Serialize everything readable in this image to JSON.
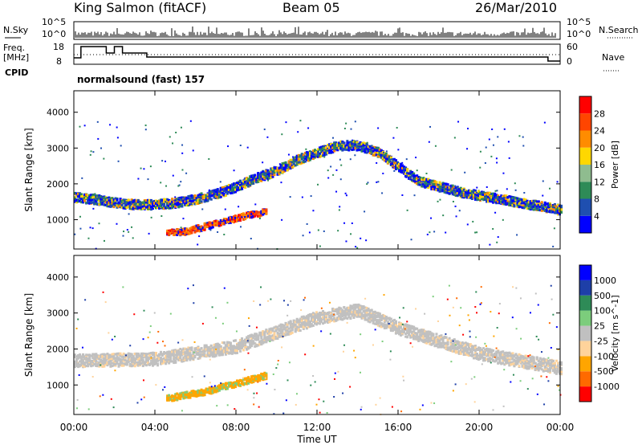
{
  "header": {
    "station": "King Salmon (fitACF)",
    "beam": "Beam 05",
    "date": "26/Mar/2010"
  },
  "left_labels": {
    "nsky": "N.Sky",
    "freq": "Freq.",
    "mhz": "[MHz]",
    "cpid": "CPID"
  },
  "right_labels": {
    "nsearch": "N.Search",
    "nave": "Nave"
  },
  "top_ticks": {
    "noise_hi": "10^5",
    "noise_lo": "10^0",
    "freq_hi": "18",
    "freq_lo": "8",
    "nave_hi": "60",
    "nave_lo": "0"
  },
  "cpid_text": "normalsound (fast) 157",
  "colors": {
    "power": [
      "#0000ff",
      "#1f4fb0",
      "#2e8b57",
      "#8fbc8f",
      "#ffd700",
      "#ff8c00",
      "#ff4500",
      "#ff0000"
    ],
    "velocity": [
      "#ff0000",
      "#ff6a00",
      "#ffa500",
      "#ffd39b",
      "#c0c0c0",
      "#7ccd7c",
      "#2e8b57",
      "#1e3fa8",
      "#0000ff"
    ]
  },
  "chart_data": [
    {
      "type": "heatmap",
      "title": "",
      "xlabel": "",
      "ylabel": "Slant Range [km]",
      "xlim": [
        "00:00",
        "00:00"
      ],
      "ylim": [
        180,
        4600
      ],
      "x_ticks": [
        "00:00",
        "04:00",
        "08:00",
        "12:00",
        "16:00",
        "20:00",
        "00:00"
      ],
      "y_ticks": [
        1000,
        2000,
        3000,
        4000
      ],
      "colorbar": {
        "label": "Power [dB]",
        "ticks": [
          4,
          8,
          12,
          16,
          20,
          24,
          28
        ]
      },
      "bands": [
        {
          "name": "main",
          "points": [
            [
              0,
              1650
            ],
            [
              1,
              1600
            ],
            [
              2,
              1500
            ],
            [
              3,
              1450
            ],
            [
              4,
              1450
            ],
            [
              5,
              1500
            ],
            [
              6,
              1600
            ],
            [
              7,
              1750
            ],
            [
              8,
              1950
            ],
            [
              9,
              2200
            ],
            [
              10,
              2400
            ],
            [
              11,
              2700
            ],
            [
              12,
              2900
            ],
            [
              13,
              3100
            ],
            [
              14,
              3100
            ],
            [
              15,
              2900
            ],
            [
              16,
              2500
            ],
            [
              17,
              2100
            ],
            [
              18,
              1950
            ],
            [
              19,
              1800
            ],
            [
              20,
              1700
            ],
            [
              21,
              1600
            ],
            [
              22,
              1500
            ],
            [
              23,
              1400
            ],
            [
              24,
              1300
            ]
          ]
        },
        {
          "name": "low-strong",
          "points": [
            [
              4.5,
              650
            ],
            [
              5.5,
              700
            ],
            [
              6.5,
              850
            ],
            [
              7.5,
              1000
            ],
            [
              8.5,
              1150
            ],
            [
              9.5,
              1250
            ]
          ]
        }
      ]
    },
    {
      "type": "heatmap",
      "title": "",
      "xlabel": "Time UT",
      "ylabel": "Slant Range [km]",
      "xlim": [
        "00:00",
        "00:00"
      ],
      "ylim": [
        180,
        4600
      ],
      "x_ticks": [
        "00:00",
        "04:00",
        "08:00",
        "12:00",
        "16:00",
        "20:00",
        "00:00"
      ],
      "y_ticks": [
        1000,
        2000,
        3000,
        4000
      ],
      "colorbar": {
        "label": "Velocity [m s^-1]",
        "ticks": [
          -1000,
          -500,
          -100,
          -25,
          25,
          100,
          500,
          1000
        ]
      },
      "bands": [
        {
          "name": "ground-scatter",
          "points": [
            [
              0,
              1700
            ],
            [
              4,
              1750
            ],
            [
              8,
              2100
            ],
            [
              12,
              2900
            ],
            [
              14,
              3100
            ],
            [
              16,
              2600
            ],
            [
              20,
              1900
            ],
            [
              24,
              1500
            ]
          ]
        },
        {
          "name": "low-negative",
          "points": [
            [
              4.5,
              650
            ],
            [
              6.5,
              850
            ],
            [
              8.5,
              1150
            ],
            [
              9.5,
              1300
            ]
          ]
        }
      ]
    }
  ]
}
